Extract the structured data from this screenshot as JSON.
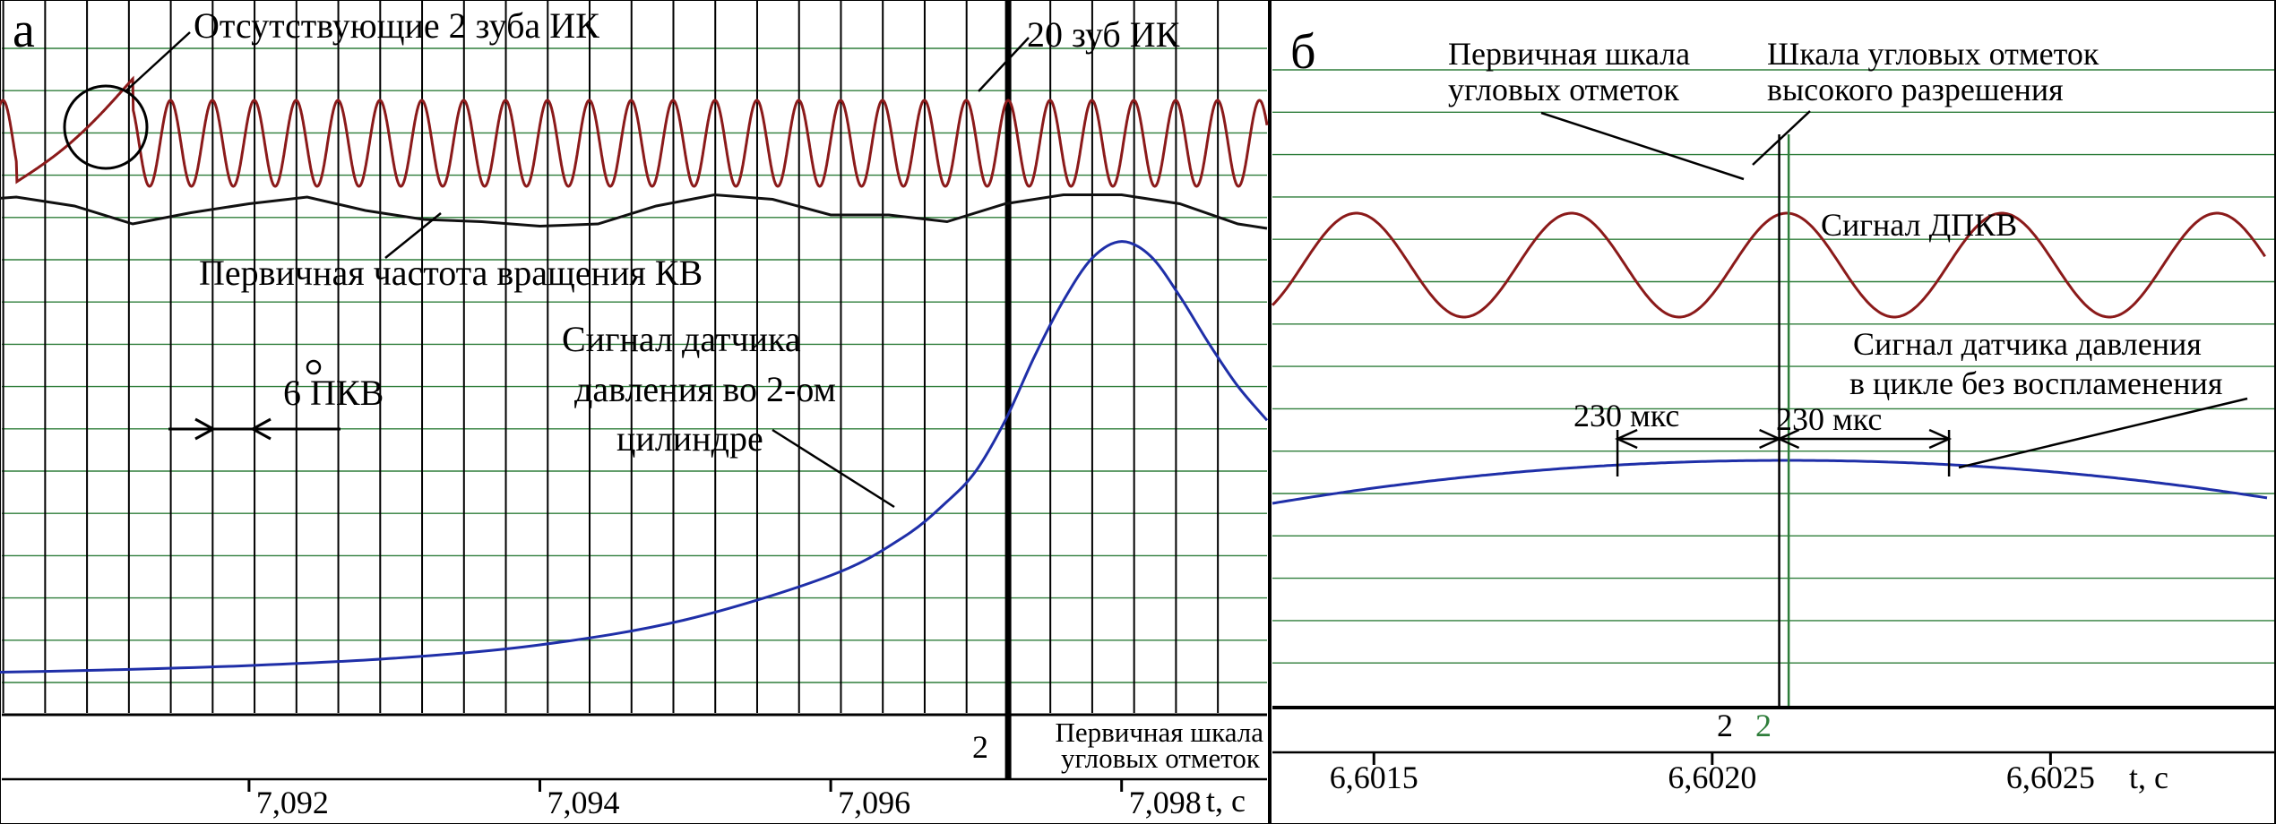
{
  "panels": [
    {
      "letter": "а"
    },
    {
      "letter": "б"
    }
  ],
  "chart_data": [
    {
      "type": "line",
      "panel": "а",
      "x_ticks": [
        "7,092",
        "7,094",
        "7,096",
        "7,098"
      ],
      "x_tick_values": [
        7.092,
        7.094,
        7.096,
        7.098
      ],
      "xlabel": "t, с",
      "xlim": [
        7.0903,
        7.099
      ],
      "grid": true,
      "angle_marks": {
        "first_time": 7.09031,
        "period": 0.000288,
        "count": 30,
        "bold_mark_time": 7.09722,
        "bold_mark_label": "2"
      },
      "series": [
        {
          "name": "ДПКВ",
          "color": "#8b1a1a",
          "shape": "sine",
          "x_range": [
            7.09,
            7.099
          ],
          "period": 0.000288,
          "phase_zero_time": 7.09722,
          "y_level": [
            -0.45,
            0.45
          ],
          "gap": [
            7.0904,
            7.0912
          ]
        },
        {
          "name": "Первичная частота вращения КВ",
          "color": "#111111",
          "x": [
            7.09,
            7.0904,
            7.0908,
            7.0912,
            7.0916,
            7.092,
            7.0924,
            7.0928,
            7.0932,
            7.0936,
            7.094,
            7.0944,
            7.0948,
            7.0952,
            7.0956,
            7.096,
            7.0964,
            7.0968,
            7.0972,
            7.0976,
            7.098,
            7.0984,
            7.0988,
            7.099
          ],
          "y": [
            0.5,
            0.6,
            0.4,
            0.0,
            0.25,
            0.45,
            0.6,
            0.3,
            0.1,
            0.05,
            -0.05,
            0.0,
            0.4,
            0.65,
            0.55,
            0.2,
            0.2,
            0.05,
            0.45,
            0.65,
            0.65,
            0.45,
            0.0,
            -0.1
          ]
        },
        {
          "name": "Сигнал датчика давления во 2-ом цилиндре",
          "color": "#1f2fa8",
          "x": [
            7.09,
            7.091,
            7.092,
            7.093,
            7.094,
            7.095,
            7.096,
            7.0965,
            7.0968,
            7.097,
            7.0972,
            7.0974,
            7.0976,
            7.0978,
            7.098,
            7.0982,
            7.0984,
            7.0986,
            7.0988,
            7.099
          ],
          "y": [
            0.04,
            0.06,
            0.09,
            0.14,
            0.23,
            0.4,
            0.7,
            0.96,
            1.2,
            1.41,
            1.75,
            2.18,
            2.56,
            2.85,
            2.96,
            2.86,
            2.59,
            2.27,
            1.98,
            1.75
          ]
        }
      ],
      "annotations": {
        "missing_teeth": "Отсутствующие 2 зуба ИК",
        "tooth20": "20 зуб ИК",
        "freq_label": "Первичная частота вращения КВ",
        "pkv_label": "6 ПКВ",
        "pressure_l1": "Сигнал датчика",
        "pressure_l2": "давления во 2-ом",
        "pressure_l3": "цилиндре",
        "scale_l1": "Первичная шкала",
        "scale_l2": "угловых отметок"
      }
    },
    {
      "type": "line",
      "panel": "б",
      "x_ticks": [
        "6,6015",
        "6,6020",
        "6,6025"
      ],
      "x_tick_values": [
        6.6015,
        6.602,
        6.6025
      ],
      "xlabel": "t, с",
      "xlim": [
        6.60135,
        6.60282
      ],
      "grid": true,
      "series": [
        {
          "name": "Сигнал ДПКВ",
          "color": "#8b1a1a",
          "shape": "sine",
          "period": 0.000318,
          "phase_zero_time": 6.60211,
          "y_level": [
            -0.45,
            0.45
          ]
        },
        {
          "name": "Сигнал датчика давления в цикле без воспламенения",
          "color": "#1f2fa8",
          "shape": "parabola",
          "x_range": [
            6.60135,
            6.60282
          ],
          "peak_time": 6.60211,
          "peak_value": 1.0,
          "end_value": 0.72
        }
      ],
      "markers": {
        "primary_time": 6.602099,
        "hires_time": 6.602113,
        "primary_label": "2",
        "hires_label": "2",
        "span_left": 6.60186,
        "span_right": 6.60235,
        "span_label_left": "230 мкс",
        "span_label_right": "230 мкс"
      },
      "annotations": {
        "primary_l1": "Первичная шкала",
        "primary_l2": "угловых отметок",
        "hires_l1": "Шкала угловых отметок",
        "hires_l2": "высокого разрешения",
        "dpkv_label": "Сигнал ДПКВ",
        "pressure_l1": "Сигнал датчика давления",
        "pressure_l2": "в цикле без воспламенения"
      }
    }
  ]
}
